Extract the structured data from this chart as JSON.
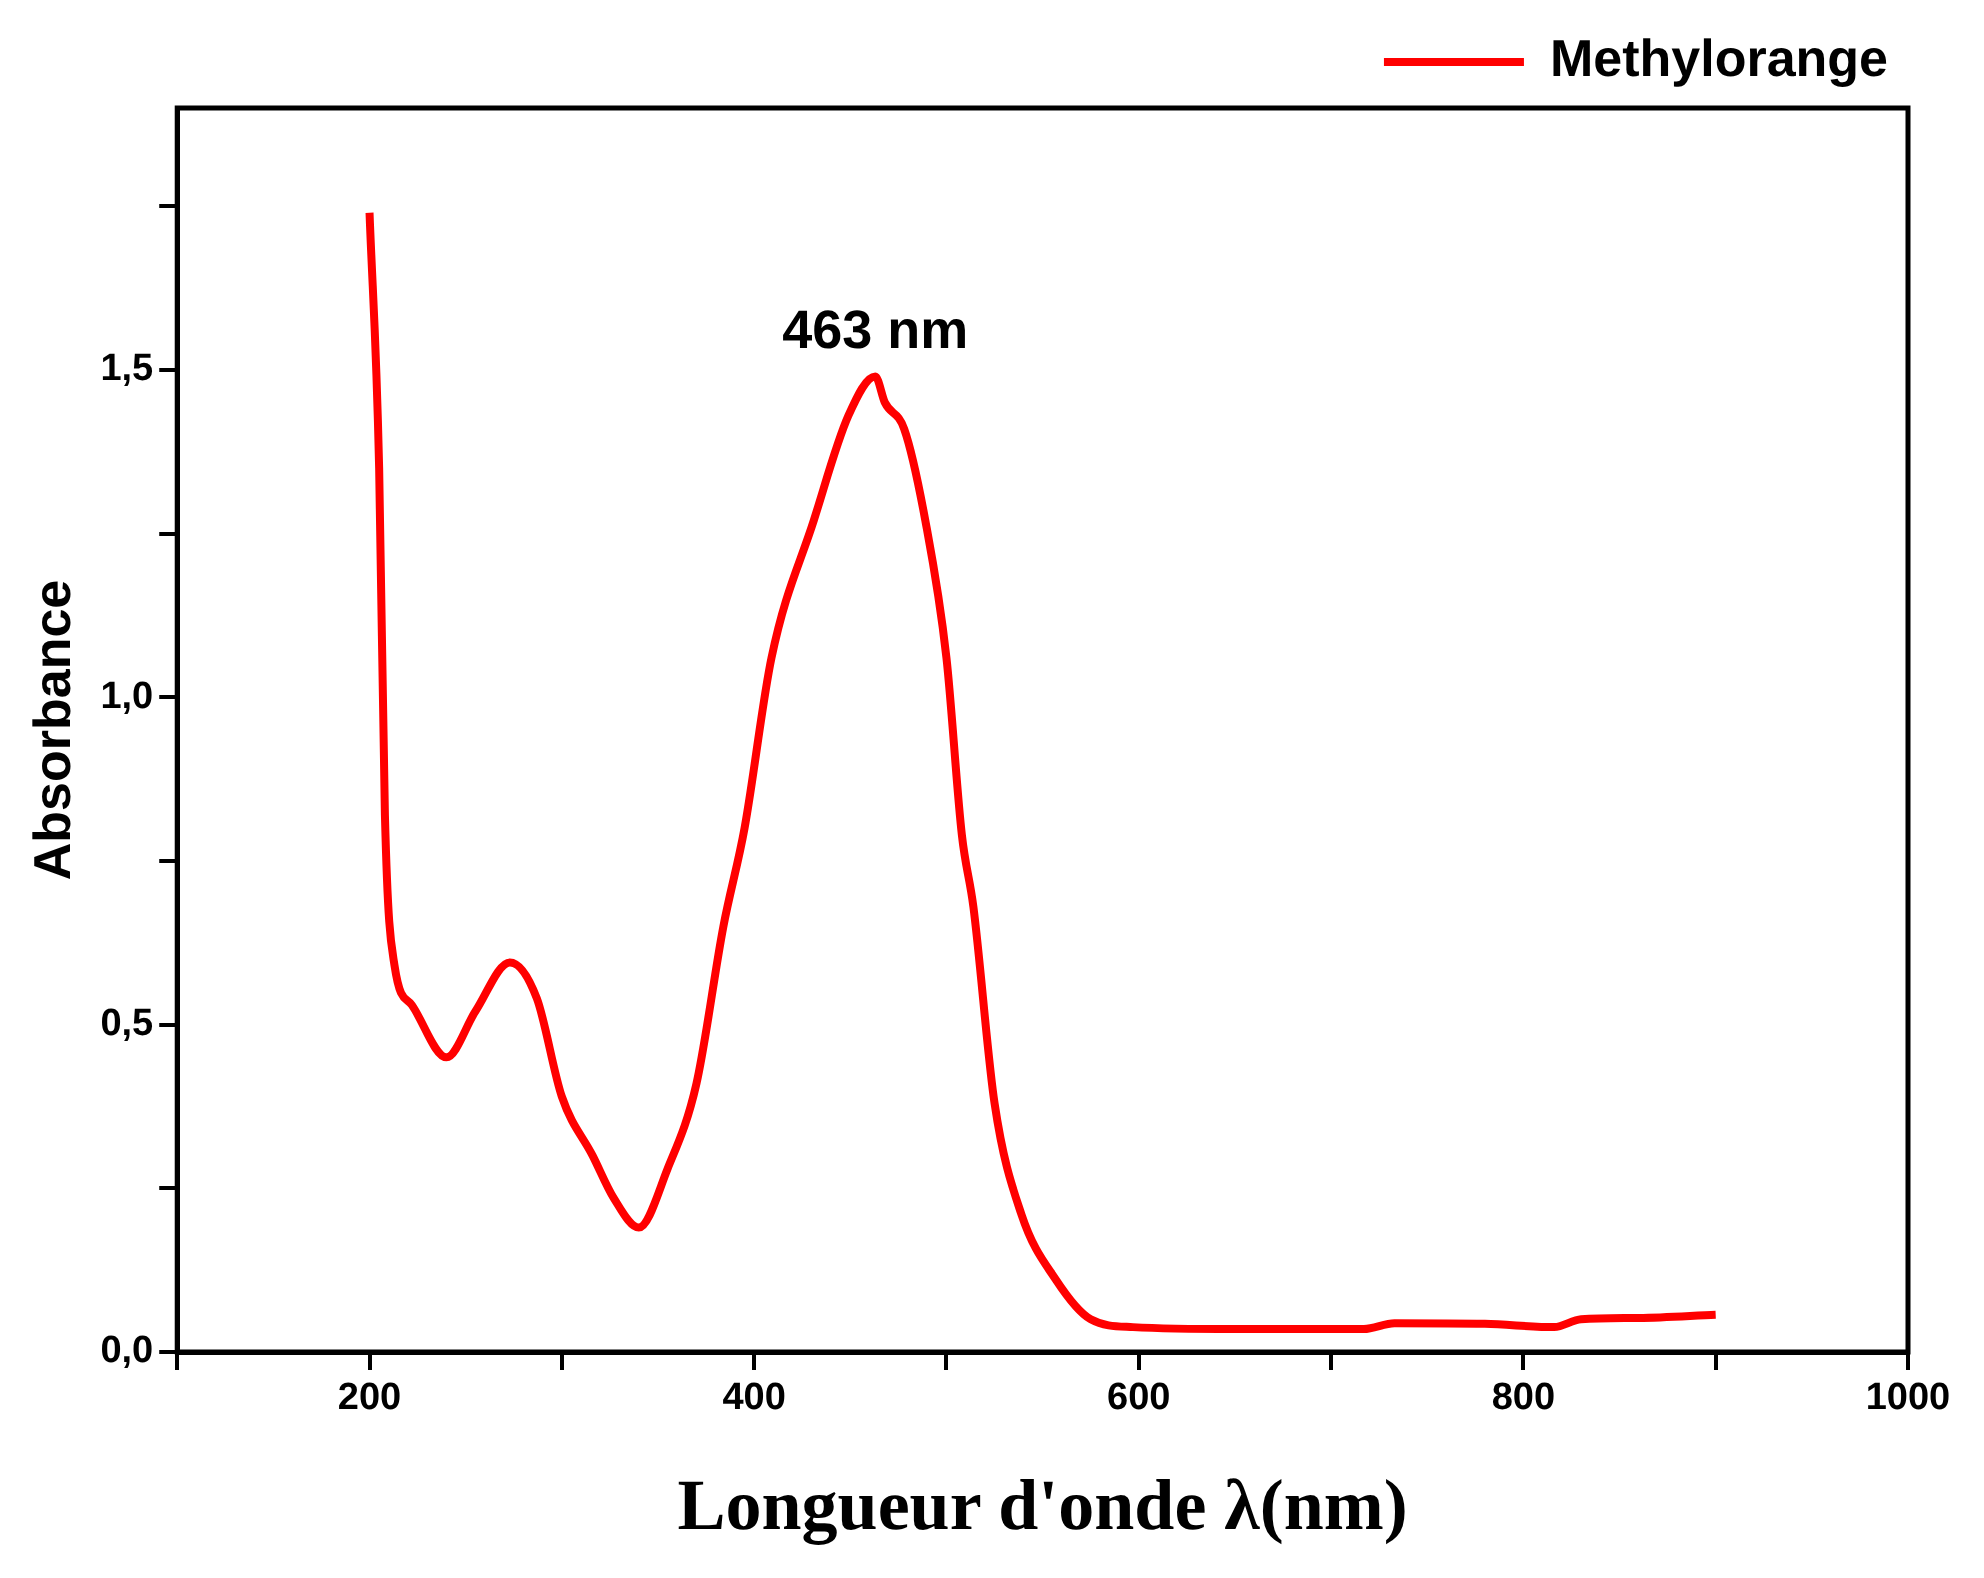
{
  "chart_data": {
    "type": "line",
    "xlabel": "Longueur d'onde λ(nm)",
    "ylabel": "Absorbance",
    "x": [
      200,
      205,
      208,
      213,
      222,
      240,
      255,
      273,
      287,
      300,
      316,
      327,
      340,
      355,
      370,
      384,
      395,
      409,
      431,
      449,
      463,
      468,
      478,
      489,
      500,
      508,
      514,
      525,
      539,
      557,
      575,
      597,
      650,
      717,
      733,
      780,
      816,
      830,
      860,
      900
    ],
    "series": [
      {
        "name": "Methylorange",
        "color": "#ff0000",
        "values": [
          1.74,
          1.35,
          0.82,
          0.59,
          0.53,
          0.45,
          0.52,
          0.595,
          0.54,
          0.39,
          0.3,
          0.235,
          0.19,
          0.28,
          0.41,
          0.65,
          0.8,
          1.06,
          1.27,
          1.43,
          1.49,
          1.45,
          1.41,
          1.27,
          1.06,
          0.79,
          0.68,
          0.38,
          0.21,
          0.11,
          0.05,
          0.038,
          0.035,
          0.035,
          0.044,
          0.043,
          0.038,
          0.05,
          0.052,
          0.057
        ]
      }
    ],
    "xlim": [
      100,
      1000
    ],
    "xticks": [
      {
        "value": 100,
        "label": null
      },
      200,
      {
        "value": 300,
        "label": null
      },
      400,
      {
        "value": 500,
        "label": null
      },
      600,
      {
        "value": 700,
        "label": null
      },
      800,
      {
        "value": 900,
        "label": null
      },
      1000
    ],
    "ylim": [
      0,
      1.9
    ],
    "yticks": [
      {
        "value": 0,
        "label": "0,0"
      },
      {
        "value": 0.25,
        "label": null
      },
      {
        "value": 0.5,
        "label": "0,5"
      },
      {
        "value": 0.75,
        "label": null
      },
      {
        "value": 1,
        "label": "1,0"
      },
      {
        "value": 1.25,
        "label": null
      },
      {
        "value": 1.5,
        "label": "1,5"
      },
      {
        "value": 1.75,
        "label": null
      }
    ],
    "annotations": [
      {
        "text": "463 nm",
        "x": 463,
        "y": 1.49
      }
    ],
    "legend": "top right",
    "grid": false,
    "marker": "none",
    "line_style": "solid"
  }
}
